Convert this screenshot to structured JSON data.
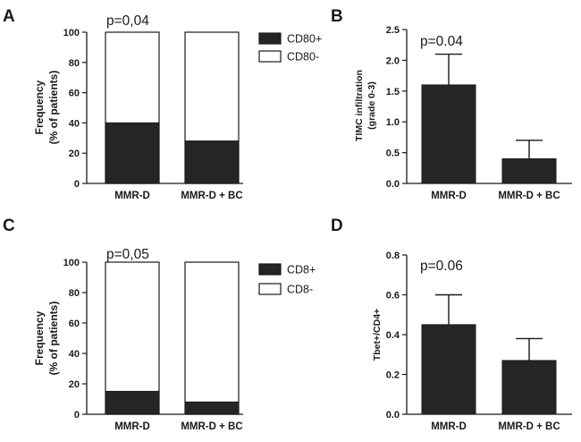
{
  "figure": {
    "panels": [
      "A",
      "B",
      "C",
      "D"
    ]
  },
  "chart_data": [
    {
      "panel": "A",
      "type": "bar",
      "stacked": true,
      "categories": [
        "MMR-D",
        "MMR-D + BC"
      ],
      "series": [
        {
          "name": "CD80+",
          "values": [
            40,
            28
          ],
          "color": "#252525"
        },
        {
          "name": "CD80-",
          "values": [
            60,
            72
          ],
          "color": "#ffffff"
        }
      ],
      "ylabel": [
        "Frequency",
        "(% of patients)"
      ],
      "ylim": [
        0,
        100
      ],
      "yticks": [
        0,
        20,
        40,
        60,
        80,
        100
      ],
      "annotation": "p=0,04",
      "legend": [
        "CD80+",
        "CD80-"
      ],
      "legend_position": "right"
    },
    {
      "panel": "B",
      "type": "bar",
      "categories": [
        "MMR-D",
        "MMR-D + BC"
      ],
      "values": [
        1.6,
        0.4
      ],
      "errors": [
        0.5,
        0.3
      ],
      "color": "#252525",
      "ylabel": [
        "TIMC infiltration",
        "(grade 0-3)"
      ],
      "ylim": [
        0,
        2.5
      ],
      "yticks": [
        "0.0",
        "0.5",
        "1.0",
        "1.5",
        "2.0",
        "2.5"
      ],
      "annotation": "p=0.04"
    },
    {
      "panel": "C",
      "type": "bar",
      "stacked": true,
      "categories": [
        "MMR-D",
        "MMR-D + BC"
      ],
      "series": [
        {
          "name": "CD8+",
          "values": [
            15,
            8
          ],
          "color": "#252525"
        },
        {
          "name": "CD8-",
          "values": [
            85,
            92
          ],
          "color": "#ffffff"
        }
      ],
      "ylabel": [
        "Frequency",
        "(% of patients)"
      ],
      "ylim": [
        0,
        100
      ],
      "yticks": [
        0,
        20,
        40,
        60,
        80,
        100
      ],
      "annotation": "p=0,05",
      "legend": [
        "CD8+",
        "CD8-"
      ],
      "legend_position": "right"
    },
    {
      "panel": "D",
      "type": "bar",
      "categories": [
        "MMR-D",
        "MMR-D + BC"
      ],
      "values": [
        0.45,
        0.27
      ],
      "errors": [
        0.15,
        0.11
      ],
      "color": "#252525",
      "ylabel": [
        "Tbet+/CD4+"
      ],
      "ylim": [
        0,
        0.8
      ],
      "yticks": [
        "0.0",
        "0.2",
        "0.4",
        "0.6",
        "0.8"
      ],
      "annotation": "p=0.06"
    }
  ]
}
